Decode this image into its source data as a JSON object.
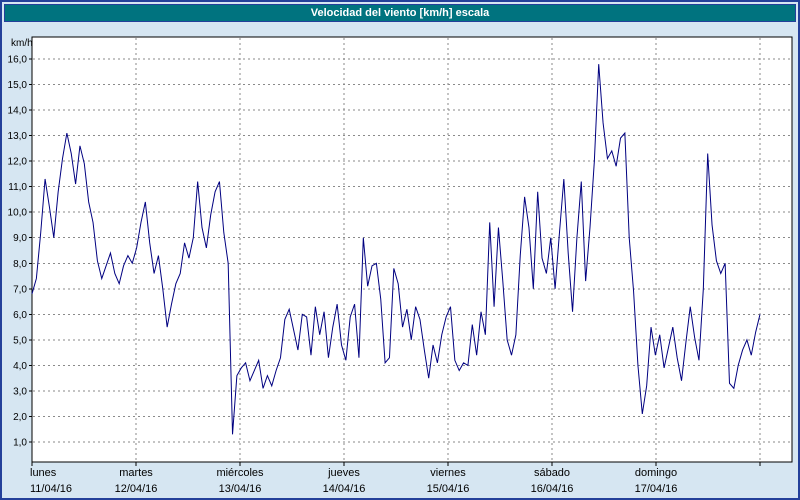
{
  "title": "Velocidad del viento [km/h] escala",
  "y_axis": {
    "unit_label": "km/h",
    "tick_labels": [
      "1,0",
      "2,0",
      "3,0",
      "4,0",
      "5,0",
      "6,0",
      "7,0",
      "8,0",
      "9,0",
      "10,0",
      "11,0",
      "12,0",
      "13,0",
      "14,0",
      "15,0",
      "16,0"
    ]
  },
  "x_axis": {
    "days": [
      {
        "name": "lunes",
        "date": "11/04/16"
      },
      {
        "name": "martes",
        "date": "12/04/16"
      },
      {
        "name": "miércoles",
        "date": "13/04/16"
      },
      {
        "name": "jueves",
        "date": "14/04/16"
      },
      {
        "name": "viernes",
        "date": "15/04/16"
      },
      {
        "name": "sábado",
        "date": "16/04/16"
      },
      {
        "name": "domingo",
        "date": "17/04/16"
      }
    ]
  },
  "colors": {
    "line": "#000080",
    "title_bg": "#00737f",
    "border": "#24409a",
    "background": "#d6e6f2",
    "grid": "#8a8a8a"
  },
  "chart_data": {
    "type": "line",
    "title": "Velocidad del viento [km/h] escala",
    "xlabel": "",
    "ylabel": "km/h",
    "ylim": [
      1,
      16
    ],
    "y_ticks": [
      1,
      2,
      3,
      4,
      5,
      6,
      7,
      8,
      9,
      10,
      11,
      12,
      13,
      14,
      15,
      16
    ],
    "grid": "dashed",
    "legend": "none",
    "categories": [
      "lunes 11/04/16",
      "martes 12/04/16",
      "miércoles 13/04/16",
      "jueves 14/04/16",
      "viernes 15/04/16",
      "sábado 16/04/16",
      "domingo 17/04/16"
    ],
    "samples_per_day": 24,
    "series": [
      {
        "name": "velocidad del viento",
        "color": "#000080",
        "values": [
          6.8,
          7.4,
          9.2,
          11.3,
          10.2,
          9.0,
          10.8,
          12.1,
          13.1,
          12.3,
          11.1,
          12.6,
          11.9,
          10.4,
          9.6,
          8.1,
          7.4,
          7.9,
          8.4,
          7.6,
          7.2,
          7.9,
          8.3,
          8.0,
          8.6,
          9.6,
          10.4,
          8.8,
          7.6,
          8.3,
          7.0,
          5.5,
          6.4,
          7.2,
          7.6,
          8.8,
          8.2,
          9.0,
          11.2,
          9.4,
          8.6,
          9.9,
          10.8,
          11.2,
          9.2,
          8.0,
          1.3,
          3.6,
          3.9,
          4.1,
          3.4,
          3.8,
          4.2,
          3.1,
          3.6,
          3.2,
          3.8,
          4.3,
          5.8,
          6.2,
          5.4,
          4.6,
          6.0,
          5.9,
          4.4,
          6.3,
          5.2,
          6.1,
          4.3,
          5.5,
          6.4,
          4.8,
          4.2,
          5.9,
          6.4,
          4.3,
          9.0,
          7.1,
          7.9,
          8.0,
          6.6,
          4.1,
          4.3,
          7.8,
          7.2,
          5.5,
          6.2,
          5.0,
          6.3,
          5.8,
          4.6,
          3.5,
          4.8,
          4.1,
          5.2,
          5.9,
          6.3,
          4.2,
          3.8,
          4.1,
          4.0,
          5.6,
          4.4,
          6.1,
          5.2,
          9.6,
          6.3,
          9.4,
          7.3,
          5.0,
          4.4,
          5.2,
          8.3,
          10.6,
          9.4,
          7.0,
          10.8,
          8.2,
          7.6,
          9.0,
          7.0,
          9.2,
          11.3,
          8.4,
          6.1,
          9.0,
          11.2,
          7.3,
          9.4,
          12.0,
          15.8,
          13.5,
          12.1,
          12.4,
          11.8,
          12.9,
          13.1,
          9.0,
          6.9,
          4.0,
          2.1,
          3.2,
          5.5,
          4.4,
          5.2,
          3.9,
          4.7,
          5.5,
          4.3,
          3.4,
          4.9,
          6.3,
          5.1,
          4.2,
          7.0,
          12.3,
          9.5,
          8.1,
          7.6,
          8.0,
          3.3,
          3.1,
          4.0,
          4.6,
          5.0,
          4.4,
          5.3,
          6.0
        ]
      }
    ]
  }
}
